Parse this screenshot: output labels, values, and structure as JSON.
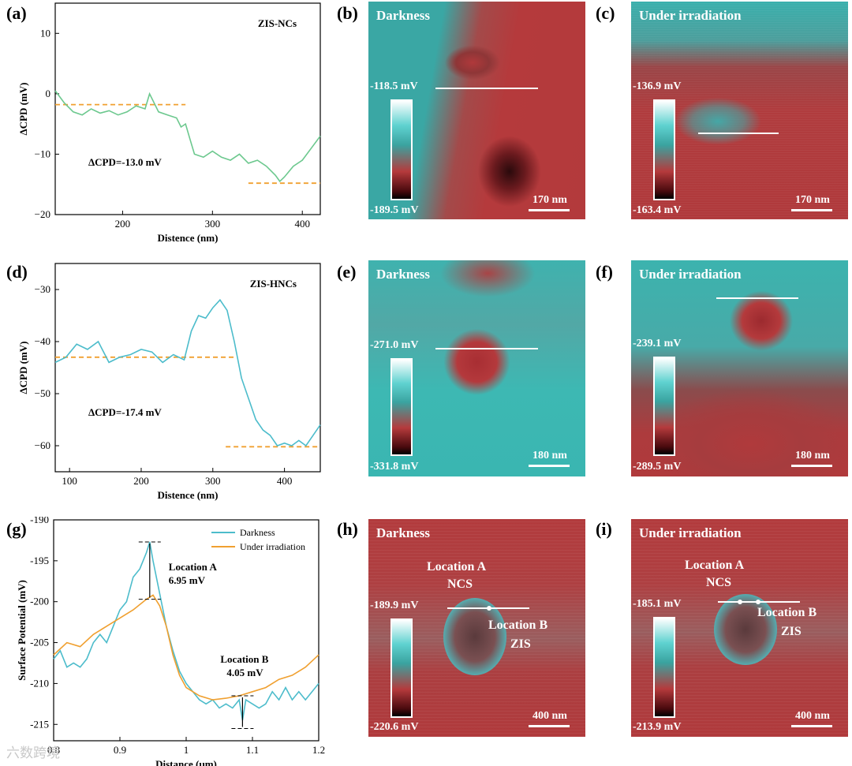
{
  "panel_labels": [
    "(a)",
    "(b)",
    "(c)",
    "(d)",
    "(e)",
    "(f)",
    "(g)",
    "(h)",
    "(i)"
  ],
  "colors": {
    "green_curve": "#6cc88e",
    "blue_curve": "#4cbccb",
    "orange": "#f0a030",
    "afm_red": "#b03a3b",
    "afm_cyan": "#40bdb8"
  },
  "chart_data": [
    {
      "id": "a",
      "type": "line",
      "title": "ZIS-NCs",
      "xlabel": "Distence (nm)",
      "ylabel": "ΔCPD (mV)",
      "xlim": [
        125,
        420
      ],
      "ylim": [
        -20,
        15
      ],
      "xticks": [
        200,
        300,
        400
      ],
      "yticks": [
        -20,
        -10,
        0,
        10
      ],
      "annotation": "ΔCPD=-13.0 mV",
      "series": [
        {
          "values_x": [
            125,
            135,
            145,
            155,
            165,
            175,
            185,
            195,
            205,
            215,
            225,
            230,
            240,
            250,
            260,
            265,
            270,
            275,
            280,
            290,
            300,
            310,
            320,
            330,
            340,
            350,
            360,
            370,
            375,
            380,
            390,
            400,
            410,
            420
          ],
          "values_y": [
            0.5,
            -1.5,
            -3,
            -3.5,
            -2.5,
            -3.2,
            -2.8,
            -3.5,
            -3,
            -2,
            -2.5,
            0,
            -3,
            -3.5,
            -4,
            -5.5,
            -5,
            -7.5,
            -10,
            -10.5,
            -9.5,
            -10.5,
            -11,
            -10,
            -11.5,
            -11,
            -12,
            -13.5,
            -14.5,
            -13.8,
            -12,
            -11,
            -9,
            -7
          ]
        }
      ],
      "reference_lines": [
        {
          "x": [
            125,
            270
          ],
          "y": -1.8
        },
        {
          "x": [
            340,
            420
          ],
          "y": -14.8
        }
      ]
    },
    {
      "id": "d",
      "type": "line",
      "title": "ZIS-HNCs",
      "xlabel": "Distence (nm)",
      "ylabel": "ΔCPD (mV)",
      "xlim": [
        80,
        450
      ],
      "ylim": [
        -65,
        -25
      ],
      "xticks": [
        100,
        200,
        300,
        400
      ],
      "yticks": [
        -60,
        -50,
        -40,
        -30
      ],
      "annotation": "ΔCPD=-17.4 mV",
      "series": [
        {
          "values_x": [
            80,
            95,
            110,
            125,
            140,
            155,
            170,
            185,
            200,
            215,
            230,
            245,
            260,
            270,
            280,
            290,
            300,
            310,
            320,
            330,
            340,
            350,
            360,
            370,
            380,
            390,
            400,
            410,
            420,
            430,
            440,
            450
          ],
          "values_y": [
            -44,
            -43,
            -40.5,
            -41.5,
            -40,
            -44,
            -43,
            -42.5,
            -41.5,
            -42,
            -44,
            -42.5,
            -43.5,
            -38,
            -35,
            -35.5,
            -33.5,
            -32,
            -34,
            -40,
            -47,
            -51,
            -55,
            -57,
            -58,
            -60,
            -59.5,
            -60,
            -59,
            -60,
            -58,
            -56
          ]
        }
      ],
      "reference_lines": [
        {
          "x": [
            80,
            330
          ],
          "y": -43
        },
        {
          "x": [
            318,
            450
          ],
          "y": -60.2
        }
      ]
    },
    {
      "id": "g",
      "type": "line",
      "xlabel": "Distance (μm)",
      "ylabel": "Surface Potential (mV)",
      "xlim": [
        0.8,
        1.2
      ],
      "ylim": [
        -217,
        -190
      ],
      "xticks": [
        0.8,
        0.9,
        1.0,
        1.1,
        1.2
      ],
      "yticks": [
        -190,
        -195,
        -200,
        -205,
        -210,
        -215
      ],
      "legend_position": "top-right",
      "series": [
        {
          "name": "Darkness",
          "values_x": [
            0.8,
            0.81,
            0.82,
            0.83,
            0.84,
            0.85,
            0.86,
            0.87,
            0.88,
            0.89,
            0.9,
            0.91,
            0.92,
            0.93,
            0.94,
            0.945,
            0.95,
            0.96,
            0.97,
            0.98,
            0.99,
            1.0,
            1.01,
            1.02,
            1.03,
            1.04,
            1.05,
            1.06,
            1.07,
            1.08,
            1.085,
            1.09,
            1.1,
            1.11,
            1.12,
            1.13,
            1.14,
            1.15,
            1.16,
            1.17,
            1.18,
            1.19,
            1.2
          ],
          "values_y": [
            -207,
            -206,
            -208,
            -207.5,
            -208,
            -207,
            -205,
            -204,
            -205,
            -203,
            -201,
            -200,
            -197,
            -196,
            -194,
            -192.7,
            -195,
            -199,
            -203,
            -206,
            -208.5,
            -210,
            -211,
            -212,
            -212.5,
            -212,
            -213,
            -212.5,
            -213,
            -212,
            -214.5,
            -212,
            -212.5,
            -213,
            -212.5,
            -211,
            -212,
            -210.5,
            -212,
            -211,
            -212,
            -211,
            -210
          ]
        },
        {
          "name": "Under irradiation",
          "values_x": [
            0.8,
            0.82,
            0.84,
            0.86,
            0.88,
            0.9,
            0.92,
            0.94,
            0.95,
            0.96,
            0.97,
            0.98,
            0.99,
            1.0,
            1.02,
            1.04,
            1.06,
            1.08,
            1.1,
            1.12,
            1.14,
            1.16,
            1.18,
            1.2
          ],
          "values_y": [
            -206.5,
            -205,
            -205.5,
            -204,
            -203,
            -202,
            -201,
            -199.7,
            -199.2,
            -200.5,
            -203,
            -206.5,
            -209,
            -210.5,
            -211.5,
            -212,
            -211.8,
            -211.5,
            -211,
            -210.5,
            -209.5,
            -209,
            -208,
            -206.5
          ]
        }
      ],
      "annotations": [
        {
          "text": "Location A",
          "value": "6.95 mV"
        },
        {
          "text": "Location B",
          "value": "4.05 mV"
        }
      ]
    }
  ],
  "afm_panels": [
    {
      "id": "b",
      "title": "Darkness",
      "cb_top": "-118.5 mV",
      "cb_bottom": "-189.5 mV",
      "scale": "170 nm"
    },
    {
      "id": "c",
      "title": "Under irradiation",
      "cb_top": "-136.9 mV",
      "cb_bottom": "-163.4 mV",
      "scale": "170 nm"
    },
    {
      "id": "e",
      "title": "Darkness",
      "cb_top": "-271.0 mV",
      "cb_bottom": "-331.8 mV",
      "scale": "180 nm"
    },
    {
      "id": "f",
      "title": "Under irradiation",
      "cb_top": "-239.1 mV",
      "cb_bottom": "-289.5 mV",
      "scale": "180 nm"
    },
    {
      "id": "h",
      "title": "Darkness",
      "cb_top": "-189.9 mV",
      "cb_bottom": "-220.6 mV",
      "scale": "400 nm",
      "loc_a": "Location A",
      "loc_a2": "NCS",
      "loc_b": "Location B",
      "loc_b2": "ZIS"
    },
    {
      "id": "i",
      "title": "Under irradiation",
      "cb_top": "-185.1 mV",
      "cb_bottom": "-213.9 mV",
      "scale": "400 nm",
      "loc_a": "Location A",
      "loc_a2": "NCS",
      "loc_b": "Location B",
      "loc_b2": "ZIS"
    }
  ],
  "watermark": "六数跨境"
}
